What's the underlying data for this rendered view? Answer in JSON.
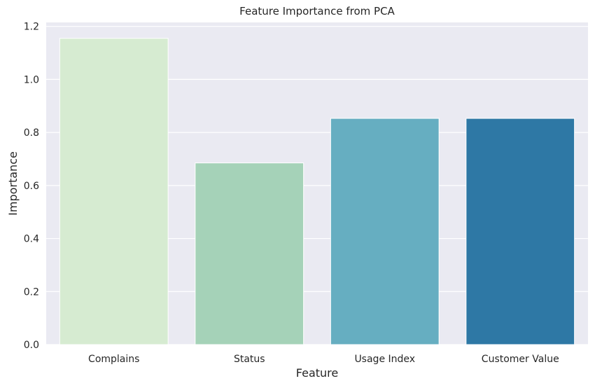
{
  "chart_data": {
    "type": "bar",
    "title": "Feature Importance from PCA",
    "xlabel": "Feature",
    "ylabel": "Importance",
    "categories": [
      "Complains",
      "Status",
      "Usage Index",
      "Customer Value"
    ],
    "values": [
      1.155,
      0.685,
      0.853,
      0.853
    ],
    "ylim": [
      0,
      1.215
    ],
    "yticks": [
      "0.0",
      "0.2",
      "0.4",
      "0.6",
      "0.8",
      "1.0",
      "1.2"
    ],
    "grid": true,
    "colors": {
      "background": "#eaeaf2",
      "grid": "#ffffff",
      "bars": [
        "#d6ebd1",
        "#a5d2b8",
        "#66aec1",
        "#2e78a5"
      ]
    }
  }
}
